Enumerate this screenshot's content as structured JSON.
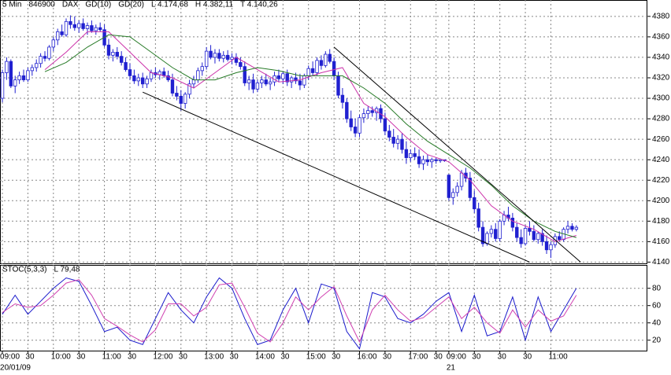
{
  "chart_data": [
    {
      "type": "candlestick",
      "header": [
        "5 Min",
        "846900",
        "DAX"
      ],
      "stats": [
        "L 4.174,68",
        "H 4.382,11",
        "T 4.140,26"
      ],
      "xlim": [
        -0.56,
        151.7
      ],
      "ylim": [
        4138,
        4396
      ],
      "yticks": [
        4140,
        4160,
        4180,
        4200,
        4220,
        4240,
        4260,
        4280,
        4300,
        4320,
        4340,
        4360,
        4380
      ],
      "grid": true,
      "up_color": "#ffffff",
      "down_color": "#2020d0",
      "outline_color": "#2020d0",
      "candles": [
        [
          4300,
          4328,
          4296,
          4325
        ],
        [
          4325,
          4340,
          4318,
          4336
        ],
        [
          4336,
          4338,
          4310,
          4312
        ],
        [
          4312,
          4322,
          4305,
          4318
        ],
        [
          4318,
          4326,
          4314,
          4322
        ],
        [
          4322,
          4328,
          4316,
          4318
        ],
        [
          4318,
          4330,
          4316,
          4327
        ],
        [
          4327,
          4333,
          4322,
          4330
        ],
        [
          4330,
          4338,
          4326,
          4334
        ],
        [
          4334,
          4344,
          4330,
          4341
        ],
        [
          4341,
          4346,
          4336,
          4339
        ],
        [
          4339,
          4352,
          4337,
          4350
        ],
        [
          4350,
          4360,
          4346,
          4357
        ],
        [
          4357,
          4368,
          4352,
          4365
        ],
        [
          4365,
          4372,
          4360,
          4362
        ],
        [
          4362,
          4378,
          4360,
          4375
        ],
        [
          4375,
          4381,
          4368,
          4372
        ],
        [
          4372,
          4380,
          4366,
          4369
        ],
        [
          4369,
          4376,
          4364,
          4373
        ],
        [
          4373,
          4378,
          4366,
          4368
        ],
        [
          4368,
          4374,
          4362,
          4371
        ],
        [
          4371,
          4376,
          4364,
          4366
        ],
        [
          4366,
          4372,
          4362,
          4369
        ],
        [
          4369,
          4374,
          4365,
          4367
        ],
        [
          4367,
          4372,
          4350,
          4352
        ],
        [
          4352,
          4358,
          4338,
          4342
        ],
        [
          4342,
          4348,
          4336,
          4345
        ],
        [
          4345,
          4350,
          4338,
          4341
        ],
        [
          4341,
          4346,
          4332,
          4335
        ],
        [
          4335,
          4340,
          4326,
          4328
        ],
        [
          4328,
          4334,
          4318,
          4322
        ],
        [
          4322,
          4328,
          4314,
          4317
        ],
        [
          4317,
          4324,
          4312,
          4320
        ],
        [
          4320,
          4325,
          4310,
          4314
        ],
        [
          4314,
          4322,
          4310,
          4319
        ],
        [
          4319,
          4328,
          4316,
          4325
        ],
        [
          4325,
          4330,
          4320,
          4323
        ],
        [
          4323,
          4328,
          4318,
          4326
        ],
        [
          4326,
          4330,
          4320,
          4322
        ],
        [
          4322,
          4327,
          4316,
          4318
        ],
        [
          4318,
          4324,
          4302,
          4305
        ],
        [
          4305,
          4312,
          4298,
          4302
        ],
        [
          4302,
          4308,
          4288,
          4295
        ],
        [
          4295,
          4306,
          4290,
          4304
        ],
        [
          4304,
          4318,
          4300,
          4314
        ],
        [
          4314,
          4322,
          4310,
          4318
        ],
        [
          4318,
          4330,
          4315,
          4327
        ],
        [
          4327,
          4335,
          4322,
          4331
        ],
        [
          4331,
          4350,
          4328,
          4346
        ],
        [
          4346,
          4352,
          4338,
          4340
        ],
        [
          4340,
          4348,
          4334,
          4344
        ],
        [
          4344,
          4348,
          4336,
          4339
        ],
        [
          4339,
          4346,
          4335,
          4342
        ],
        [
          4342,
          4347,
          4336,
          4338
        ],
        [
          4338,
          4344,
          4333,
          4340
        ],
        [
          4340,
          4344,
          4332,
          4335
        ],
        [
          4335,
          4340,
          4328,
          4331
        ],
        [
          4331,
          4336,
          4312,
          4315
        ],
        [
          4315,
          4322,
          4308,
          4318
        ],
        [
          4318,
          4324,
          4305,
          4309
        ],
        [
          4309,
          4318,
          4306,
          4315
        ],
        [
          4315,
          4322,
          4310,
          4318
        ],
        [
          4318,
          4324,
          4312,
          4314
        ],
        [
          4314,
          4320,
          4308,
          4316
        ],
        [
          4316,
          4326,
          4312,
          4322
        ],
        [
          4322,
          4328,
          4316,
          4319
        ],
        [
          4319,
          4326,
          4314,
          4324
        ],
        [
          4324,
          4328,
          4312,
          4316
        ],
        [
          4316,
          4322,
          4310,
          4320
        ],
        [
          4320,
          4325,
          4314,
          4317
        ],
        [
          4317,
          4324,
          4308,
          4313
        ],
        [
          4313,
          4324,
          4310,
          4322
        ],
        [
          4322,
          4332,
          4318,
          4329
        ],
        [
          4329,
          4336,
          4322,
          4325
        ],
        [
          4325,
          4340,
          4322,
          4337
        ],
        [
          4337,
          4342,
          4328,
          4332
        ],
        [
          4332,
          4346,
          4330,
          4343
        ],
        [
          4343,
          4348,
          4334,
          4336
        ],
        [
          4336,
          4340,
          4318,
          4322
        ],
        [
          4322,
          4326,
          4300,
          4303
        ],
        [
          4303,
          4310,
          4290,
          4296
        ],
        [
          4296,
          4300,
          4276,
          4280
        ],
        [
          4280,
          4288,
          4268,
          4272
        ],
        [
          4272,
          4280,
          4262,
          4266
        ],
        [
          4266,
          4284,
          4262,
          4281
        ],
        [
          4281,
          4290,
          4276,
          4285
        ],
        [
          4285,
          4292,
          4280,
          4288
        ],
        [
          4288,
          4292,
          4282,
          4286
        ],
        [
          4286,
          4292,
          4278,
          4290
        ],
        [
          4290,
          4294,
          4276,
          4280
        ],
        [
          4280,
          4286,
          4264,
          4268
        ],
        [
          4268,
          4274,
          4258,
          4262
        ],
        [
          4262,
          4270,
          4252,
          4256
        ],
        [
          4256,
          4264,
          4250,
          4260
        ],
        [
          4260,
          4266,
          4246,
          4250
        ],
        [
          4250,
          4258,
          4236,
          4242
        ],
        [
          4242,
          4250,
          4238,
          4246
        ],
        [
          4246,
          4252,
          4240,
          4243
        ],
        [
          4243,
          4250,
          4232,
          4236
        ],
        [
          4236,
          4244,
          4230,
          4240
        ],
        [
          4240,
          4245,
          4234,
          4238
        ],
        [
          4238,
          4242,
          4232,
          4240
        ],
        [
          4240,
          4242,
          4236,
          4239
        ],
        [
          4239,
          4241,
          4237,
          4240
        ],
        [
          4240,
          4240,
          4238,
          4239
        ],
        [
          4225,
          4226,
          4200,
          4203
        ],
        [
          4203,
          4212,
          4196,
          4208
        ],
        [
          4208,
          4218,
          4204,
          4214
        ],
        [
          4214,
          4230,
          4210,
          4227
        ],
        [
          4227,
          4232,
          4218,
          4222
        ],
        [
          4222,
          4228,
          4200,
          4203
        ],
        [
          4203,
          4210,
          4188,
          4192
        ],
        [
          4192,
          4198,
          4170,
          4174
        ],
        [
          4174,
          4180,
          4155,
          4158
        ],
        [
          4158,
          4170,
          4156,
          4168
        ],
        [
          4168,
          4176,
          4164,
          4172
        ],
        [
          4172,
          4178,
          4160,
          4163
        ],
        [
          4163,
          4182,
          4160,
          4180
        ],
        [
          4180,
          4190,
          4176,
          4186
        ],
        [
          4186,
          4194,
          4180,
          4183
        ],
        [
          4183,
          4188,
          4170,
          4174
        ],
        [
          4174,
          4178,
          4160,
          4164
        ],
        [
          4164,
          4172,
          4154,
          4158
        ],
        [
          4158,
          4176,
          4156,
          4173
        ],
        [
          4173,
          4180,
          4166,
          4170
        ],
        [
          4170,
          4176,
          4160,
          4162
        ],
        [
          4162,
          4170,
          4158,
          4168
        ],
        [
          4168,
          4172,
          4156,
          4160
        ],
        [
          4160,
          4166,
          4148,
          4152
        ],
        [
          4152,
          4160,
          4144,
          4157
        ],
        [
          4157,
          4168,
          4154,
          4165
        ],
        [
          4165,
          4170,
          4160,
          4162
        ],
        [
          4162,
          4174,
          4160,
          4172
        ],
        [
          4172,
          4180,
          4168,
          4175
        ],
        [
          4175,
          4178,
          4170,
          4172
        ],
        [
          4172,
          4176,
          4170,
          4174
        ]
      ],
      "series": [
        {
          "name": "GD(10)",
          "color": "#cc33aa",
          "x": [
            10,
            15,
            20,
            25,
            30,
            35,
            40,
            45,
            50,
            55,
            60,
            65,
            70,
            75,
            80,
            85,
            90,
            95,
            100,
            105,
            110,
            115,
            120,
            125,
            130,
            135
          ],
          "values": [
            4328,
            4345,
            4365,
            4365,
            4345,
            4325,
            4320,
            4310,
            4325,
            4340,
            4328,
            4316,
            4318,
            4325,
            4330,
            4295,
            4282,
            4262,
            4245,
            4238,
            4220,
            4195,
            4180,
            4172,
            4160,
            4166
          ]
        },
        {
          "name": "GD(20)",
          "color": "#267a26",
          "x": [
            10,
            15,
            20,
            25,
            30,
            35,
            40,
            45,
            50,
            55,
            60,
            65,
            70,
            75,
            80,
            85,
            90,
            95,
            100,
            105,
            110,
            115,
            120,
            125,
            130,
            135
          ],
          "values": [
            4326,
            4335,
            4350,
            4362,
            4360,
            4345,
            4330,
            4318,
            4318,
            4325,
            4330,
            4327,
            4322,
            4322,
            4322,
            4310,
            4295,
            4275,
            4258,
            4245,
            4232,
            4215,
            4195,
            4180,
            4170,
            4164
          ]
        }
      ],
      "trendlines": [
        {
          "color": "#000000",
          "x": [
            33,
            124
          ],
          "values": [
            4306,
            4140
          ]
        },
        {
          "color": "#000000",
          "x": [
            78,
            136
          ],
          "values": [
            4350,
            4140
          ]
        }
      ]
    },
    {
      "type": "line",
      "title": "STOC(5,3,3)",
      "stats": [
        "L 79,48"
      ],
      "xlim": [
        -0.56,
        151.7
      ],
      "ylim": [
        7,
        107
      ],
      "yticks": [
        20,
        40,
        60,
        80
      ],
      "grid": true,
      "xticks": [
        {
          "value": 0,
          "label": "09:00"
        },
        {
          "value": 6,
          "label": "30"
        },
        {
          "value": 12,
          "label": "10:00"
        },
        {
          "value": 18,
          "label": "30"
        },
        {
          "value": 24,
          "label": "11:00"
        },
        {
          "value": 30,
          "label": "30"
        },
        {
          "value": 36,
          "label": "12:00"
        },
        {
          "value": 42,
          "label": "30"
        },
        {
          "value": 48,
          "label": "13:00"
        },
        {
          "value": 54,
          "label": "30"
        },
        {
          "value": 60,
          "label": "14:00"
        },
        {
          "value": 66,
          "label": "30"
        },
        {
          "value": 72,
          "label": "15:00"
        },
        {
          "value": 78,
          "label": "30"
        },
        {
          "value": 84,
          "label": "16:00"
        },
        {
          "value": 90,
          "label": "30"
        },
        {
          "value": 96,
          "label": "17:00"
        },
        {
          "value": 102,
          "label": "30"
        },
        {
          "value": 105,
          "label": "09:00"
        },
        {
          "value": 111,
          "label": "30"
        },
        {
          "value": 117,
          "label": "30"
        },
        {
          "value": 123,
          "label": "30"
        },
        {
          "value": 129,
          "label": "11:00"
        }
      ],
      "date_labels": [
        {
          "x": 0,
          "label": "20/01/09"
        },
        {
          "x": 105,
          "label": "21"
        }
      ],
      "series": [
        {
          "color": "#1a1acc",
          "x": [
            0,
            3,
            6,
            9,
            12,
            15,
            18,
            21,
            24,
            27,
            30,
            33,
            36,
            39,
            42,
            45,
            48,
            51,
            54,
            57,
            60,
            63,
            66,
            69,
            72,
            75,
            78,
            81,
            84,
            87,
            90,
            93,
            96,
            99,
            102,
            105,
            108,
            111,
            114,
            117,
            120,
            123,
            126,
            129,
            132,
            135
          ],
          "values": [
            50,
            72,
            50,
            65,
            80,
            92,
            88,
            60,
            30,
            35,
            20,
            15,
            45,
            75,
            55,
            40,
            70,
            92,
            80,
            45,
            15,
            20,
            55,
            80,
            40,
            85,
            80,
            30,
            10,
            75,
            70,
            45,
            40,
            50,
            65,
            75,
            30,
            72,
            25,
            30,
            70,
            20,
            70,
            30,
            55,
            80
          ]
        },
        {
          "color": "#d040b0",
          "x": [
            0,
            3,
            6,
            9,
            12,
            15,
            18,
            21,
            24,
            27,
            30,
            33,
            36,
            39,
            42,
            45,
            48,
            51,
            54,
            57,
            60,
            63,
            66,
            69,
            72,
            75,
            78,
            81,
            84,
            87,
            90,
            93,
            96,
            99,
            102,
            105,
            108,
            111,
            114,
            117,
            120,
            123,
            126,
            129,
            132,
            135
          ],
          "values": [
            52,
            62,
            58,
            60,
            72,
            86,
            90,
            72,
            45,
            36,
            26,
            18,
            32,
            62,
            62,
            48,
            58,
            84,
            86,
            58,
            28,
            18,
            40,
            70,
            55,
            70,
            82,
            48,
            18,
            55,
            72,
            55,
            42,
            46,
            58,
            70,
            45,
            58,
            40,
            28,
            55,
            35,
            55,
            42,
            48,
            72
          ]
        }
      ]
    }
  ]
}
